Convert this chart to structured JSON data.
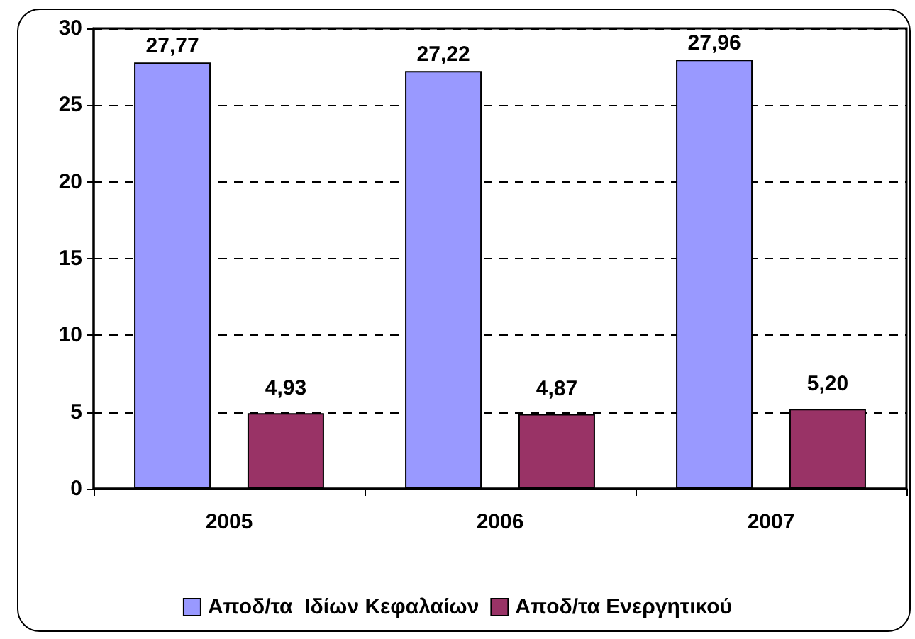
{
  "chart_data": {
    "type": "bar",
    "categories": [
      "2005",
      "2006",
      "2007"
    ],
    "series": [
      {
        "name": "Αποδ/τα  Ιδίων Κεφαλαίων",
        "color": "#9999ff",
        "values": [
          27.77,
          27.22,
          27.96
        ],
        "value_labels": [
          "27,77",
          "27,22",
          "27,96"
        ]
      },
      {
        "name": "Αποδ/τα Ενεργητικού",
        "color": "#993366",
        "values": [
          4.93,
          4.87,
          5.2
        ],
        "value_labels": [
          "4,93",
          "4,87",
          "5,20"
        ]
      }
    ],
    "ylim": [
      0,
      30
    ],
    "yticks": [
      0,
      5,
      10,
      15,
      20,
      25,
      30
    ],
    "grid": "y",
    "legend": "bottom"
  }
}
